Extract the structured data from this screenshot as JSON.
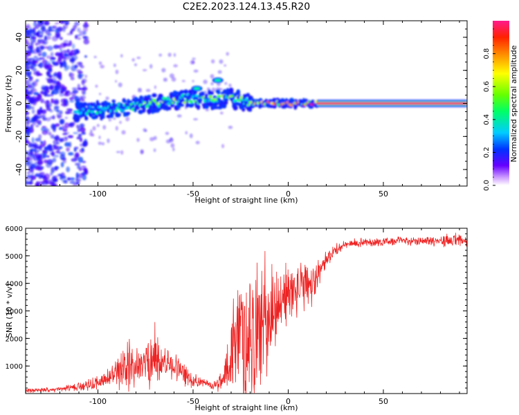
{
  "title": "C2E2.2023.124.13.45.R20",
  "colors": {
    "snr_line": "#ee2222",
    "axis": "#000000",
    "colormap": [
      "#6600ff",
      "#2a00ff",
      "#0044ff",
      "#00ccff",
      "#00ff88",
      "#66ff00",
      "#ffff00",
      "#ffaa00",
      "#ff3300",
      "#ff0066",
      "#ff1a8c"
    ]
  },
  "chart_data": [
    {
      "type": "heatmap",
      "xlabel": "Height of straight line (km)",
      "ylabel": "Frequency (Hz)",
      "xlim": [
        -138,
        94
      ],
      "ylim": [
        -50,
        50
      ],
      "xticks": [
        -100,
        -50,
        0,
        50
      ],
      "yticks": [
        -40,
        -20,
        0,
        20,
        40
      ],
      "ridge": {
        "x": [
          -112,
          -100,
          -90,
          -80,
          -70,
          -60,
          -50,
          -40,
          -30,
          -20,
          -15,
          0,
          15,
          94
        ],
        "freq_hz": [
          -5,
          -4,
          -3,
          -1,
          0,
          2,
          3,
          2,
          3,
          0,
          0,
          0,
          0,
          0
        ],
        "amplitude": [
          0.3,
          0.35,
          0.4,
          0.45,
          0.45,
          0.5,
          0.45,
          0.45,
          0.5,
          0.5,
          0.7,
          0.65,
          0.85,
          0.95
        ]
      },
      "colorbar": {
        "label": "Normalized spectral amplitude",
        "range": [
          0.0,
          1.0
        ],
        "ticks": [
          0.0,
          0.2,
          0.4,
          0.6,
          0.8
        ]
      }
    },
    {
      "type": "line",
      "xlabel": "Height of straight line (km)",
      "ylabel": "SNR (10 * v/v)",
      "xlim": [
        -138,
        94
      ],
      "ylim": [
        0,
        6000
      ],
      "xticks": [
        -100,
        -50,
        0,
        50
      ],
      "yticks": [
        1000,
        2000,
        3000,
        4000,
        5000,
        6000
      ],
      "series": [
        {
          "x": [
            -138,
            -120,
            -110,
            -100,
            -90,
            -84,
            -80,
            -75,
            -70,
            -68,
            -60,
            -55,
            -50,
            -45,
            -40,
            -35,
            -32,
            -28,
            -25,
            -20,
            -15,
            -10,
            -5,
            0,
            5,
            10,
            12,
            15,
            20,
            25,
            30,
            40,
            50,
            60,
            70,
            80,
            88,
            94
          ],
          "base": [
            100,
            150,
            250,
            400,
            700,
            900,
            1000,
            1100,
            1300,
            1200,
            1000,
            700,
            500,
            400,
            300,
            400,
            1100,
            1700,
            2000,
            2200,
            2300,
            2800,
            3300,
            3600,
            3800,
            3900,
            3800,
            4300,
            4900,
            5200,
            5400,
            5500,
            5500,
            5550,
            5550,
            5550,
            5550,
            5500
          ],
          "amp": [
            80,
            80,
            150,
            250,
            500,
            900,
            600,
            900,
            1200,
            700,
            500,
            400,
            250,
            150,
            150,
            300,
            1200,
            2000,
            2400,
            2600,
            2400,
            1800,
            1500,
            1000,
            900,
            900,
            800,
            500,
            300,
            200,
            150,
            150,
            150,
            150,
            150,
            200,
            250,
            200
          ]
        }
      ]
    }
  ]
}
